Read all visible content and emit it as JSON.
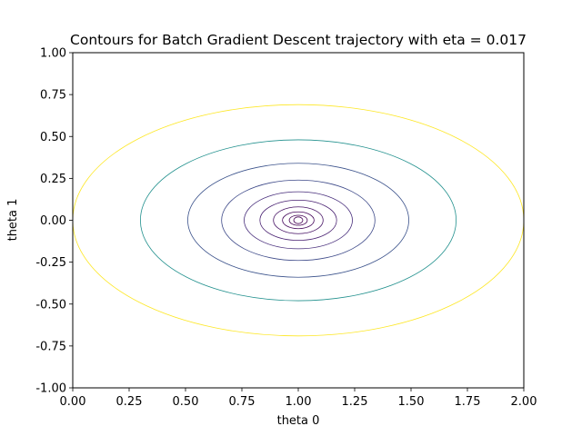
{
  "chart_data": {
    "type": "contour",
    "title": "Contours for Batch Gradient Descent trajectory with eta = 0.017",
    "xlabel": "theta 0",
    "ylabel": "theta 1",
    "xlim": [
      0.0,
      2.0
    ],
    "ylim": [
      -1.0,
      1.0
    ],
    "xticks": [
      "0.00",
      "0.25",
      "0.50",
      "0.75",
      "1.00",
      "1.25",
      "1.50",
      "1.75",
      "2.00"
    ],
    "yticks": [
      "-1.00",
      "-0.75",
      "-0.50",
      "-0.25",
      "0.00",
      "0.25",
      "0.50",
      "0.75",
      "1.00"
    ],
    "center": [
      1.0,
      0.0
    ],
    "grid": false,
    "levels": [
      {
        "rx": 0.02,
        "ry": 0.02,
        "color": "#440154"
      },
      {
        "rx": 0.04,
        "ry": 0.03,
        "color": "#440154"
      },
      {
        "rx": 0.07,
        "ry": 0.05,
        "color": "#46085c"
      },
      {
        "rx": 0.11,
        "ry": 0.08,
        "color": "#471365"
      },
      {
        "rx": 0.17,
        "ry": 0.12,
        "color": "#482071"
      },
      {
        "rx": 0.24,
        "ry": 0.17,
        "color": "#472d7b"
      },
      {
        "rx": 0.34,
        "ry": 0.24,
        "color": "#3e4a89"
      },
      {
        "rx": 0.49,
        "ry": 0.34,
        "color": "#3b528b"
      },
      {
        "rx": 0.7,
        "ry": 0.48,
        "color": "#21908d"
      },
      {
        "rx": 1.0,
        "ry": 0.69,
        "color": "#fde725"
      }
    ]
  }
}
